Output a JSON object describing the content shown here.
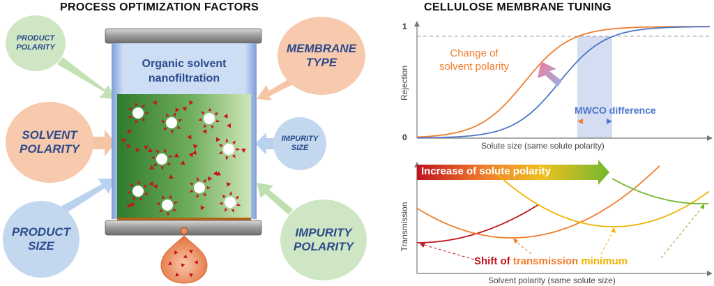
{
  "left": {
    "title": "PROCESS OPTIMIZATION FACTORS",
    "center_label": "Organic solvent\nnanofiltration",
    "factors": {
      "product_polarity": "PRODUCT\nPOLARITY",
      "solvent_polarity": "SOLVENT\nPOLARITY",
      "product_size": "PRODUCT\nSIZE",
      "membrane_type": "MEMBRANE\nTYPE",
      "impurity_size": "IMPURITY\nSIZE",
      "impurity_polarity": "IMPURITY\nPOLARITY"
    },
    "colors": {
      "green_bubble": "#cfe6c4",
      "orange_bubble": "#f7c9ad",
      "blue_bubble": "#c3d8ef",
      "text": "#2c4a8c",
      "particle": "#c8141e"
    }
  },
  "right": {
    "title": "CELLULOSE MEMBRANE TUNING",
    "top_chart": {
      "ylabel": "Rejection",
      "xlabel": "Solute size (same solute polarity)",
      "y_tick_top": "1",
      "y_tick_bottom": "0",
      "annotation_polarity": "Change of\nsolvent polarity",
      "annotation_mwco": "MWCO difference",
      "colors": {
        "orange": "#ef7d2c",
        "blue": "#4a76c8",
        "band": "#cdd7ef"
      }
    },
    "bottom_chart": {
      "ylabel": "Transmission",
      "xlabel": "Solvent polarity (same solute size)",
      "arrow_label": "Increase of solute polarity",
      "shift_label_1": "Shift of ",
      "shift_label_2": "transmission ",
      "shift_label_3": "minimum",
      "colors": {
        "red": "#c0141e",
        "orange": "#ef7d2c",
        "yellow": "#f0b400",
        "green": "#72b82d"
      }
    }
  }
}
